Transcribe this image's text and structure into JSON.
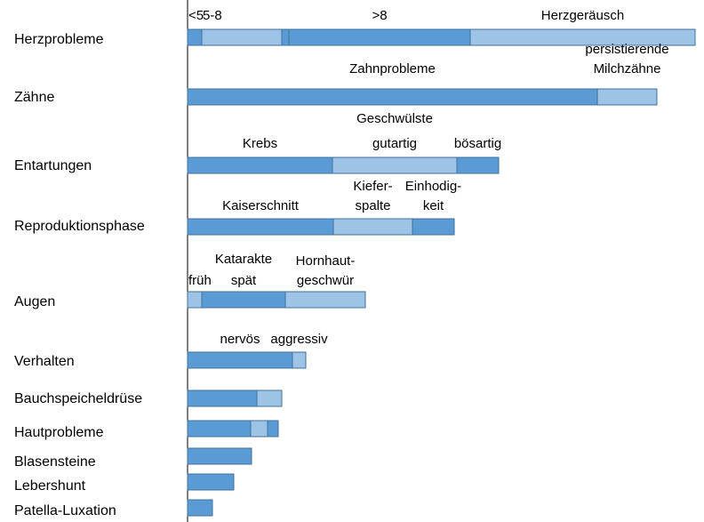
{
  "chart_data": {
    "type": "bar",
    "orientation": "horizontal",
    "stacked": true,
    "colors": {
      "dark": "#5B9BD5",
      "light": "#9DC3E6",
      "stroke": "#41719C"
    },
    "categories": [
      {
        "name": "Herzprobleme",
        "segments": [
          {
            "value": 16,
            "shade": "dark"
          },
          {
            "value": 90,
            "shade": "light"
          },
          {
            "value": 8,
            "shade": "dark"
          },
          {
            "value": 204,
            "shade": "dark"
          },
          {
            "value": 253,
            "shade": "light"
          }
        ],
        "labels": [
          {
            "lines": [
              "<5"
            ],
            "seg": 0,
            "anchor": "start"
          },
          {
            "lines": [
              "5-8"
            ],
            "seg": 1,
            "anchor": "start"
          },
          {
            "lines": [
              ">8"
            ],
            "seg": 3,
            "anchor": "middle"
          },
          {
            "lines": [
              "Herzgeräusch"
            ],
            "seg": 4,
            "anchor": "middle"
          }
        ]
      },
      {
        "name": "Zähne",
        "segments": [
          {
            "value": 461,
            "shade": "dark"
          },
          {
            "value": 67,
            "shade": "light"
          }
        ],
        "labels": [
          {
            "lines": [
              "Zahnprobleme"
            ],
            "seg": 0,
            "anchor": "middle"
          },
          {
            "lines": [
              "persistierende",
              "Milchzähne"
            ],
            "seg": 1,
            "anchor": "middle"
          }
        ]
      },
      {
        "name": "Entartungen",
        "segments": [
          {
            "value": 163,
            "shade": "dark"
          },
          {
            "value": 140,
            "shade": "light"
          },
          {
            "value": 47,
            "shade": "dark"
          }
        ],
        "labels": [
          {
            "lines": [
              "Krebs"
            ],
            "seg": 0,
            "anchor": "middle"
          },
          {
            "lines": [
              "Geschwülste"
            ],
            "seg": 1,
            "anchor": "middle",
            "level": 1
          },
          {
            "lines": [
              "gutartig"
            ],
            "seg": 1,
            "anchor": "middle"
          },
          {
            "lines": [
              "bösartig"
            ],
            "seg": 2,
            "anchor": "middle"
          }
        ]
      },
      {
        "name": "Reproduktionsphase",
        "segments": [
          {
            "value": 164,
            "shade": "dark"
          },
          {
            "value": 89,
            "shade": "light"
          },
          {
            "value": 47,
            "shade": "dark"
          }
        ],
        "labels": [
          {
            "lines": [
              "Kaiserschnitt"
            ],
            "seg": 0,
            "anchor": "middle"
          },
          {
            "lines": [
              "Kiefer-",
              "spalte"
            ],
            "seg": 1,
            "anchor": "middle"
          },
          {
            "lines": [
              "Einhodig-",
              "keit"
            ],
            "seg": 2,
            "anchor": "middle"
          }
        ]
      },
      {
        "name": "Augen",
        "segments": [
          {
            "value": 16,
            "shade": "light"
          },
          {
            "value": 94,
            "shade": "dark"
          },
          {
            "value": 90,
            "shade": "light"
          }
        ],
        "labels": [
          {
            "lines": [
              "Katarakte"
            ],
            "seg": 1,
            "anchor": "middle",
            "level": 1
          },
          {
            "lines": [
              "früh"
            ],
            "seg": 0,
            "anchor": "start"
          },
          {
            "lines": [
              "spät"
            ],
            "seg": 1,
            "anchor": "middle"
          },
          {
            "lines": [
              "Hornhaut-",
              "geschwür"
            ],
            "seg": 2,
            "anchor": "middle"
          }
        ]
      },
      {
        "name": "Verhalten",
        "segments": [
          {
            "value": 118,
            "shade": "dark"
          },
          {
            "value": 15,
            "shade": "light"
          }
        ],
        "labels": [
          {
            "lines": [
              "nervös"
            ],
            "seg": 0,
            "anchor": "middle"
          },
          {
            "lines": [
              "aggressiv"
            ],
            "seg": 1,
            "anchor": "middle"
          }
        ]
      },
      {
        "name": "Bauchspeicheldrüse",
        "segments": [
          {
            "value": 78,
            "shade": "dark"
          },
          {
            "value": 28,
            "shade": "light"
          }
        ],
        "labels": []
      },
      {
        "name": "Hautprobleme",
        "segments": [
          {
            "value": 71,
            "shade": "dark"
          },
          {
            "value": 19,
            "shade": "light"
          },
          {
            "value": 12,
            "shade": "dark"
          }
        ],
        "labels": []
      },
      {
        "name": "Blasensteine",
        "segments": [
          {
            "value": 72,
            "shade": "dark"
          }
        ],
        "labels": []
      },
      {
        "name": "Lebershunt",
        "segments": [
          {
            "value": 52,
            "shade": "dark"
          }
        ],
        "labels": []
      },
      {
        "name": "Patella-Luxation",
        "segments": [
          {
            "value": 28,
            "shade": "dark"
          }
        ],
        "labels": []
      }
    ]
  }
}
